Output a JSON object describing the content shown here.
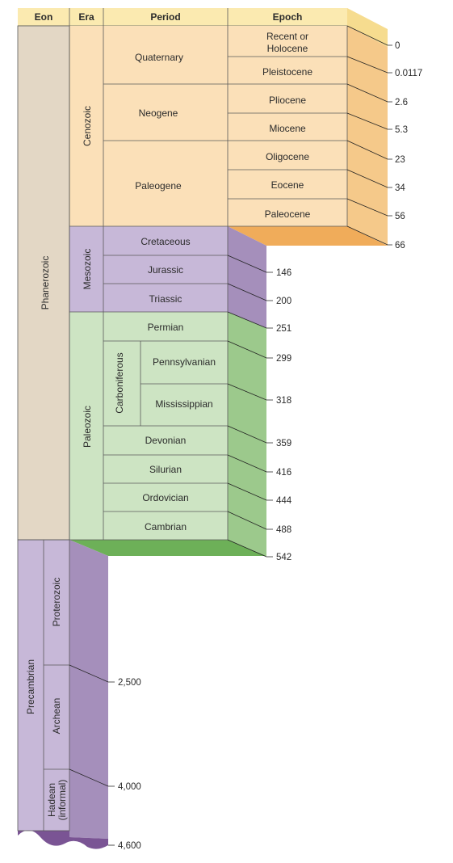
{
  "headers": {
    "eon": "Eon",
    "era": "Era",
    "period": "Period",
    "epoch": "Epoch"
  },
  "eons": {
    "phanerozoic": "Phanerozoic",
    "precambrian": "Precambrian"
  },
  "eras": {
    "cenozoic": "Cenozoic",
    "mesozoic": "Mesozoic",
    "paleozoic": "Paleozoic"
  },
  "precambrian_eras": {
    "proterozoic": "Proterozoic",
    "archean": "Archean",
    "hadean_line1": "Hadean",
    "hadean_line2": "(informal)"
  },
  "periods": {
    "quaternary": "Quaternary",
    "neogene": "Neogene",
    "paleogene": "Paleogene",
    "cretaceous": "Cretaceous",
    "jurassic": "Jurassic",
    "triassic": "Triassic",
    "permian": "Permian",
    "carboniferous": "Carboniferous",
    "pennsylvanian": "Pennsylvanian",
    "mississippian": "Mississippian",
    "devonian": "Devonian",
    "silurian": "Silurian",
    "ordovician": "Ordovician",
    "cambrian": "Cambrian"
  },
  "epochs": {
    "recent_line1": "Recent or",
    "recent_line2": "Holocene",
    "pleistocene": "Pleistocene",
    "pliocene": "Pliocene",
    "miocene": "Miocene",
    "oligocene": "Oligocene",
    "eocene": "Eocene",
    "paleocene": "Paleocene"
  },
  "ages": {
    "a0": "0",
    "a0117": "0.0117",
    "a2_6": "2.6",
    "a5_3": "5.3",
    "a23": "23",
    "a34": "34",
    "a56": "56",
    "a66": "66",
    "a146": "146",
    "a200": "200",
    "a251": "251",
    "a299": "299",
    "a318": "318",
    "a359": "359",
    "a416": "416",
    "a444": "444",
    "a488": "488",
    "a542": "542",
    "a2500": "2,500",
    "a4000": "4,000",
    "a4600": "4,600"
  },
  "colors": {
    "header": "#fbeab0",
    "cenozoic": "#fbe0b8",
    "cenozoic_side": "#f5c98a",
    "cenozoic_bottom": "#f0ac5a",
    "mesozoic": "#c7b8d8",
    "mesozoic_side": "#a58fbb",
    "paleozoic": "#cde4c3",
    "paleozoic_side": "#9cc98c",
    "paleozoic_bottom": "#6db058",
    "phanerozoic": "#e3d7c5",
    "precambrian": "#c7b8d8",
    "precambrian_side": "#a58fbb",
    "precambrian_bottom": "#7a5494"
  }
}
